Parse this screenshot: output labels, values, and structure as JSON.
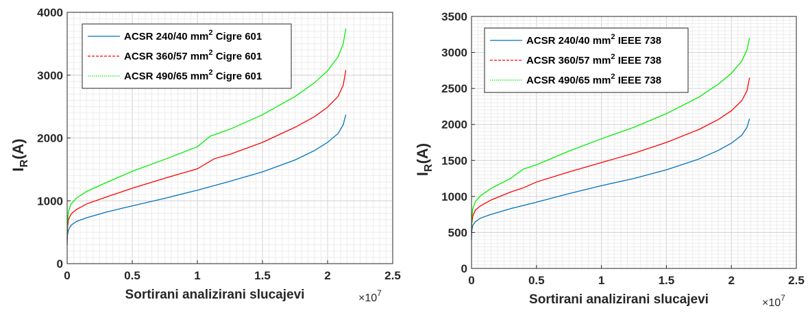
{
  "chart_data": [
    {
      "type": "line",
      "title": "",
      "xlabel": "Sortirani analizirani slucajevi",
      "ylabel_main": "I",
      "ylabel_sub": "R",
      "ylabel_rest": "(A)",
      "x_exponent_base": "×10",
      "x_exponent_power": "7",
      "xlim": [
        0,
        2.5
      ],
      "ylim": [
        0,
        4000
      ],
      "xticks": [
        0,
        0.5,
        1,
        1.5,
        2,
        2.5
      ],
      "xtick_labels": [
        "0",
        "0.5",
        "1",
        "1.5",
        "2",
        "2.5"
      ],
      "yticks": [
        0,
        1000,
        2000,
        3000,
        4000
      ],
      "ytick_labels": [
        "0",
        "1000",
        "2000",
        "3000",
        "4000"
      ],
      "grid": true,
      "legend_position": "top-left",
      "series": [
        {
          "name": "ACSR 240/40 mm",
          "name_sup": "2",
          "name_suffix": " Cigre 601",
          "color": "#0072BD",
          "dash": "solid",
          "x": [
            0,
            0.002,
            0.01,
            0.03,
            0.07,
            0.15,
            0.3,
            0.5,
            0.75,
            1.0,
            1.25,
            1.5,
            1.75,
            1.9,
            2.0,
            2.08,
            2.12,
            2.14
          ],
          "y": [
            300,
            450,
            540,
            610,
            670,
            730,
            820,
            920,
            1040,
            1170,
            1310,
            1460,
            1650,
            1800,
            1930,
            2070,
            2210,
            2370
          ]
        },
        {
          "name": "ACSR 360/57 mm",
          "name_sup": "2",
          "name_suffix": " Cigre 601",
          "color": "#FF0000",
          "dash": "dashed",
          "x": [
            0,
            0.002,
            0.01,
            0.03,
            0.07,
            0.15,
            0.3,
            0.5,
            0.75,
            1.0,
            1.13,
            1.25,
            1.5,
            1.75,
            1.9,
            2.0,
            2.08,
            2.12,
            2.14
          ],
          "y": [
            380,
            560,
            700,
            790,
            860,
            950,
            1060,
            1200,
            1360,
            1510,
            1670,
            1740,
            1930,
            2170,
            2340,
            2490,
            2660,
            2840,
            3080
          ]
        },
        {
          "name": "ACSR 490/65 mm",
          "name_sup": "2",
          "name_suffix": " Cigre 601",
          "color": "#00EE00",
          "dash": "dotted",
          "x": [
            0,
            0.002,
            0.01,
            0.03,
            0.07,
            0.15,
            0.3,
            0.5,
            0.75,
            1.0,
            1.1,
            1.25,
            1.5,
            1.75,
            1.9,
            2.0,
            2.08,
            2.12,
            2.14
          ],
          "y": [
            450,
            650,
            830,
            950,
            1040,
            1150,
            1290,
            1470,
            1660,
            1860,
            2030,
            2140,
            2370,
            2660,
            2880,
            3070,
            3290,
            3500,
            3740
          ]
        }
      ]
    },
    {
      "type": "line",
      "title": "",
      "xlabel": "Sortirani analizirani slucajevi",
      "ylabel_main": "I",
      "ylabel_sub": "R",
      "ylabel_rest": "(A)",
      "x_exponent_base": "×10",
      "x_exponent_power": "7",
      "xlim": [
        0,
        2.5
      ],
      "ylim": [
        0,
        3500
      ],
      "xticks": [
        0,
        0.5,
        1,
        1.5,
        2,
        2.5
      ],
      "xtick_labels": [
        "0",
        "0.5",
        "1",
        "1.5",
        "2",
        "2.5"
      ],
      "yticks": [
        0,
        500,
        1000,
        1500,
        2000,
        2500,
        3000,
        3500
      ],
      "ytick_labels": [
        "0",
        "500",
        "1000",
        "1500",
        "2000",
        "2500",
        "3000",
        "3500"
      ],
      "grid": true,
      "legend_position": "top-left",
      "series": [
        {
          "name": "ACSR 240/40 mm",
          "name_sup": "2",
          "name_suffix": " IEEE 738",
          "color": "#0072BD",
          "dash": "solid",
          "x": [
            0,
            0.002,
            0.01,
            0.03,
            0.07,
            0.15,
            0.3,
            0.5,
            0.75,
            1.0,
            1.25,
            1.5,
            1.75,
            1.9,
            2.0,
            2.08,
            2.12,
            2.14
          ],
          "y": [
            400,
            520,
            600,
            650,
            700,
            750,
            830,
            920,
            1040,
            1150,
            1250,
            1370,
            1520,
            1640,
            1740,
            1850,
            1960,
            2080
          ]
        },
        {
          "name": "ACSR 360/57 mm",
          "name_sup": "2",
          "name_suffix": " IEEE 738",
          "color": "#FF0000",
          "dash": "dashed",
          "x": [
            0,
            0.002,
            0.01,
            0.03,
            0.07,
            0.15,
            0.3,
            0.4,
            0.5,
            0.75,
            1.0,
            1.25,
            1.5,
            1.75,
            1.9,
            2.0,
            2.08,
            2.12,
            2.14
          ],
          "y": [
            500,
            620,
            730,
            810,
            870,
            950,
            1060,
            1120,
            1200,
            1340,
            1470,
            1600,
            1750,
            1930,
            2070,
            2190,
            2330,
            2470,
            2650
          ]
        },
        {
          "name": "ACSR 490/65 mm",
          "name_sup": "2",
          "name_suffix": " IEEE 738",
          "color": "#00EE00",
          "dash": "dotted",
          "x": [
            0,
            0.002,
            0.01,
            0.03,
            0.07,
            0.15,
            0.3,
            0.4,
            0.5,
            0.75,
            1.0,
            1.25,
            1.5,
            1.75,
            1.9,
            2.0,
            2.08,
            2.12,
            2.14
          ],
          "y": [
            550,
            700,
            830,
            930,
            1010,
            1110,
            1250,
            1380,
            1440,
            1630,
            1800,
            1960,
            2150,
            2380,
            2560,
            2710,
            2880,
            3040,
            3200
          ]
        }
      ]
    }
  ]
}
